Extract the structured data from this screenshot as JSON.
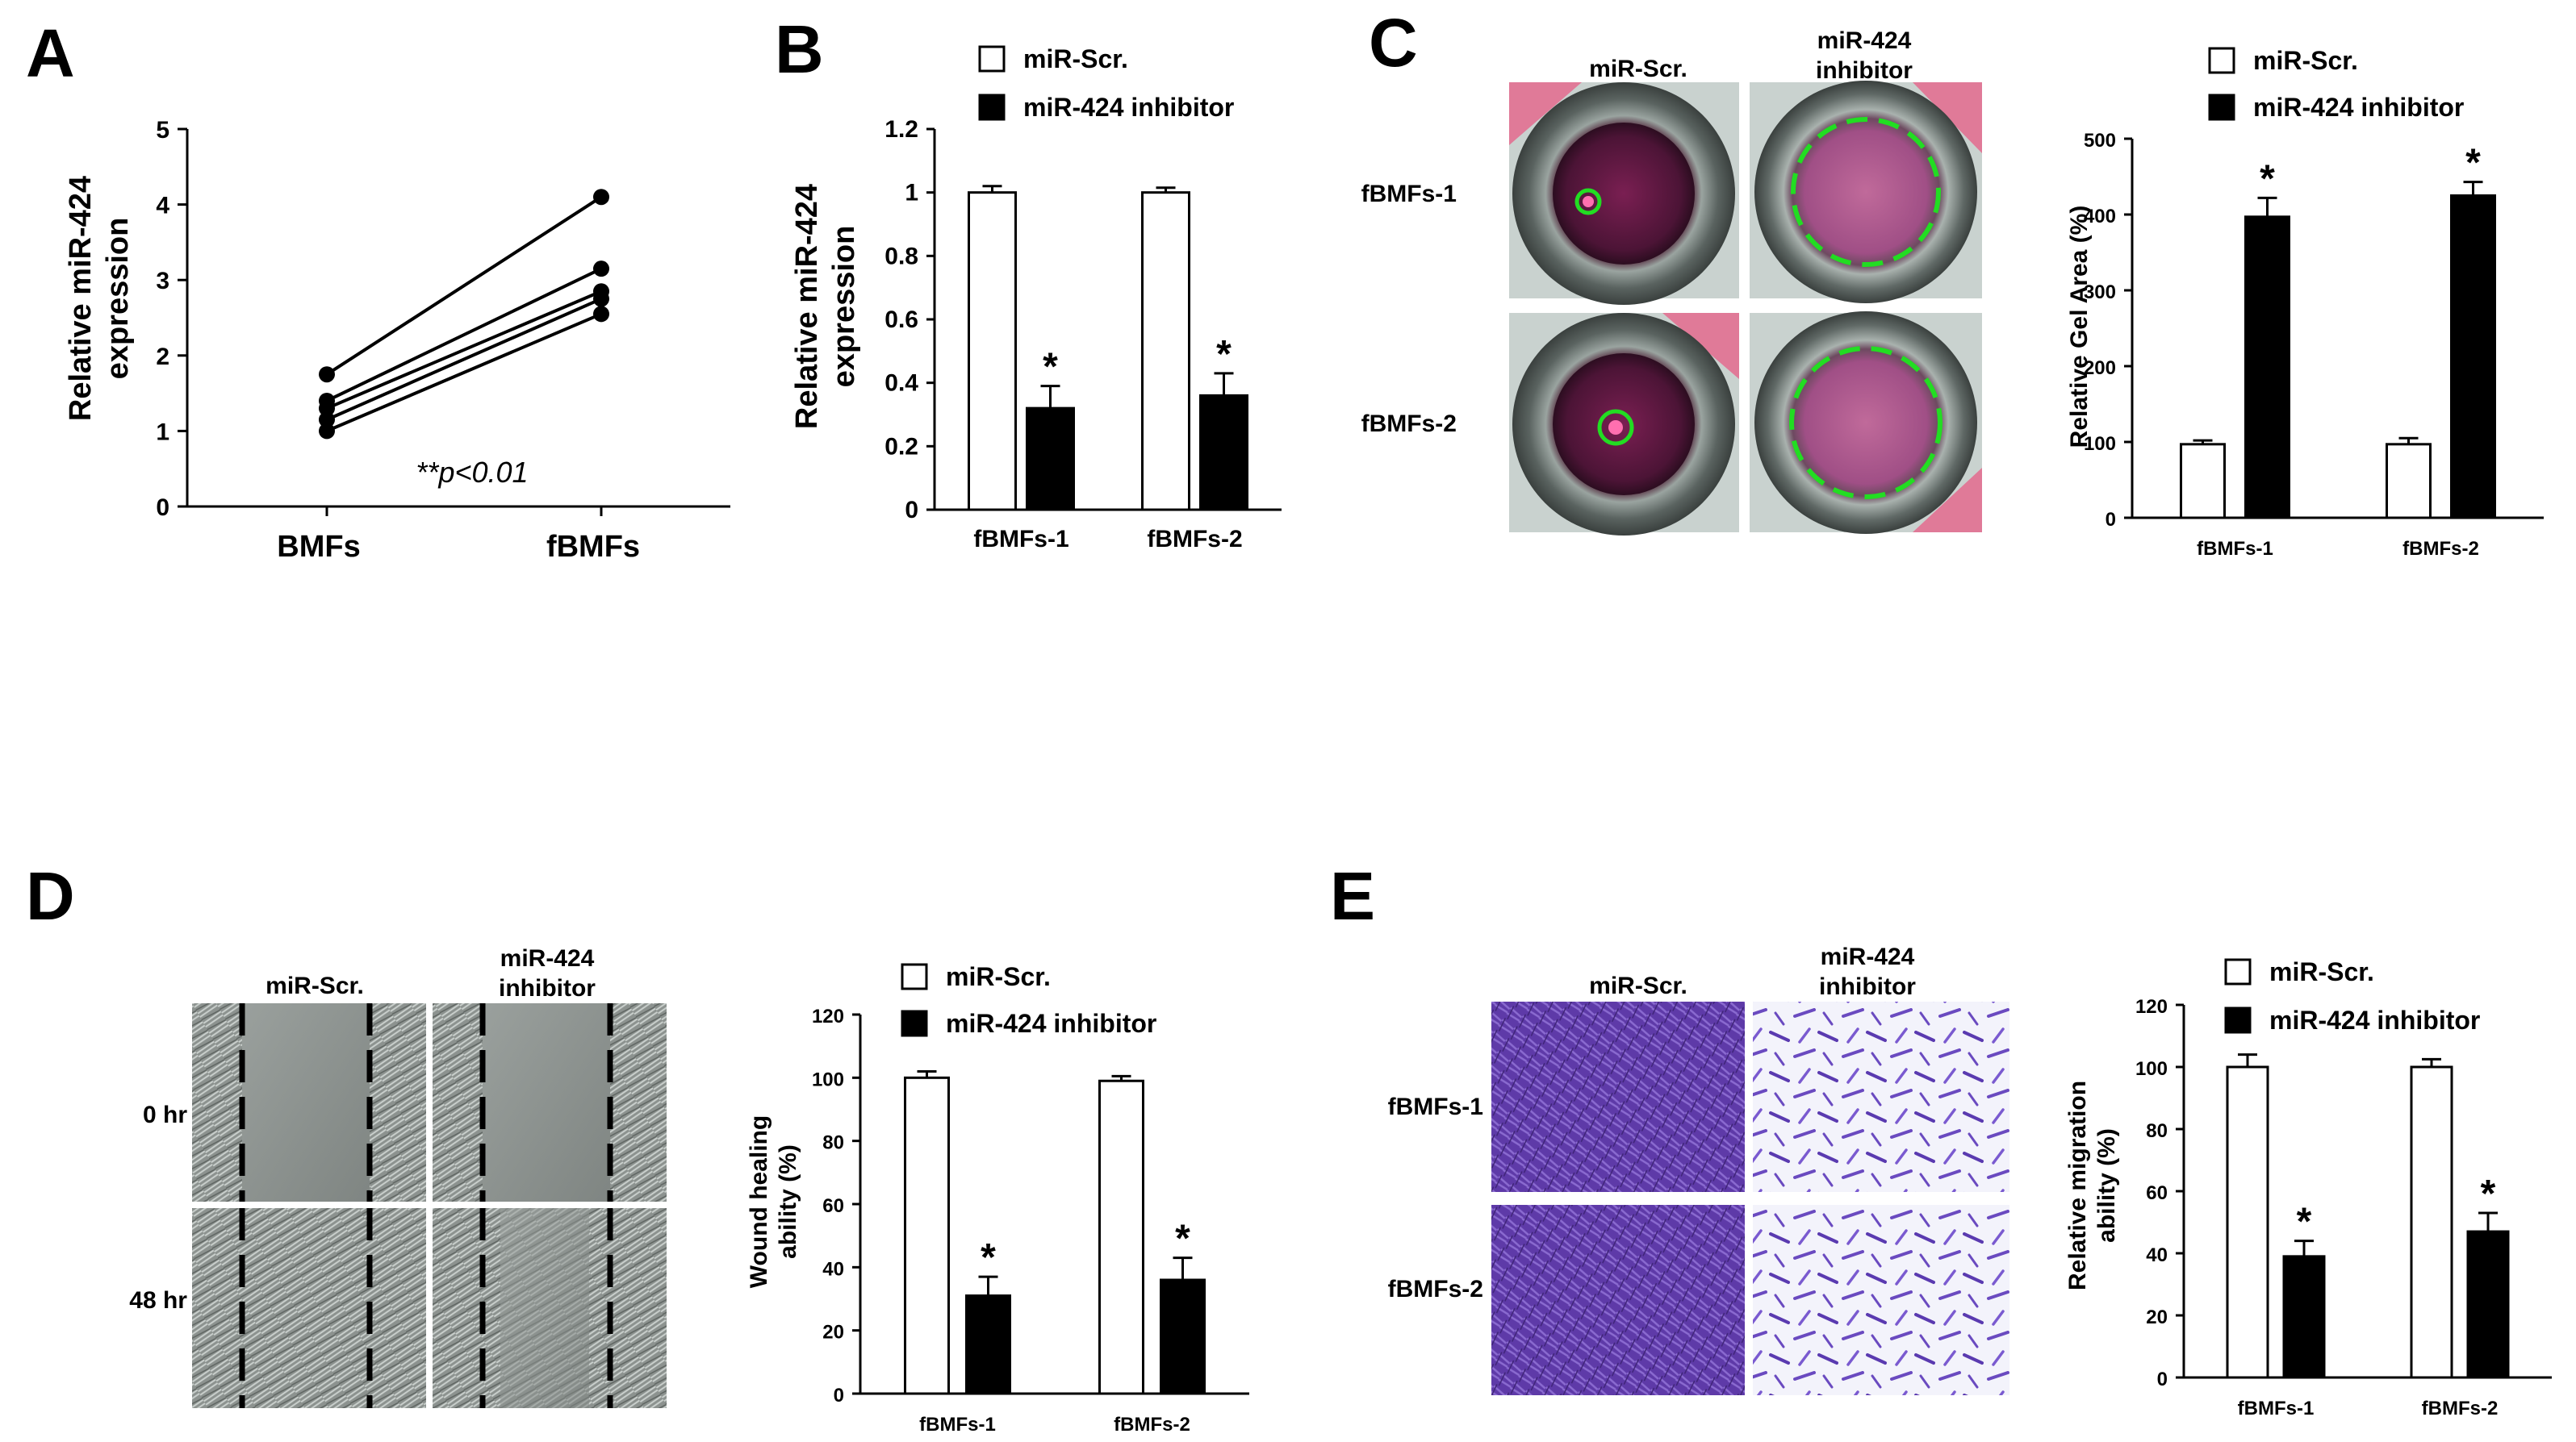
{
  "panels": {
    "A": {
      "label": "A"
    },
    "B": {
      "label": "B"
    },
    "C": {
      "label": "C"
    },
    "D": {
      "label": "D"
    },
    "E": {
      "label": "E"
    }
  },
  "legend": {
    "scr": "miR-Scr.",
    "inhibitor": "miR-424 inhibitor"
  },
  "images": {
    "C": {
      "col1": "miR-Scr.",
      "col2_line1": "miR-424",
      "col2_line2": "inhibitor",
      "row1": "fBMFs-1",
      "row2": "fBMFs-2"
    },
    "D": {
      "col1": "miR-Scr.",
      "col2_line1": "miR-424",
      "col2_line2": "inhibitor",
      "row1": "0 hr",
      "row2": "48 hr"
    },
    "E": {
      "col1": "miR-Scr.",
      "col2_line1": "miR-424",
      "col2_line2": "inhibitor",
      "row1": "fBMFs-1",
      "row2": "fBMFs-2"
    }
  },
  "colors": {
    "inhibitor": "#000000",
    "scr": "#ffffff",
    "gel_ring": "#22dd22",
    "well_pink": "#b02a6a",
    "crystal_violet": "#6a3fb8"
  },
  "chart_data": [
    {
      "id": "A",
      "type": "line",
      "ylabel_line1": "Relative miR-424",
      "ylabel_line2": "expression",
      "categories": [
        "BMFs",
        "fBMFs"
      ],
      "ylim": [
        0,
        5
      ],
      "yticks": [
        0,
        1,
        2,
        3,
        4,
        5
      ],
      "pairs": [
        [
          1.75,
          4.1
        ],
        [
          1.4,
          3.15
        ],
        [
          1.3,
          2.85
        ],
        [
          1.15,
          2.75
        ],
        [
          1.0,
          2.55
        ]
      ],
      "annotation": "**p<0.01"
    },
    {
      "id": "B",
      "type": "bar",
      "ylabel_line1": "Relative miR-424",
      "ylabel_line2": "expression",
      "categories": [
        "fBMFs-1",
        "fBMFs-2"
      ],
      "ylim": [
        0,
        1.2
      ],
      "yticks": [
        "0",
        "0.2",
        "0.4",
        "0.6",
        "0.8",
        "1",
        "1.2"
      ],
      "series": [
        {
          "name": "miR-Scr.",
          "values": [
            1.0,
            1.0
          ],
          "errors": [
            0.02,
            0.015
          ]
        },
        {
          "name": "miR-424 inhibitor",
          "values": [
            0.32,
            0.36
          ],
          "errors": [
            0.07,
            0.07
          ]
        }
      ],
      "stars": [
        "*",
        "*"
      ]
    },
    {
      "id": "C",
      "type": "bar",
      "ylabel": "Relative Gel Area (%)",
      "categories": [
        "fBMFs-1",
        "fBMFs-2"
      ],
      "ylim": [
        0,
        500
      ],
      "yticks": [
        "0",
        "100",
        "200",
        "300",
        "400",
        "500"
      ],
      "series": [
        {
          "name": "miR-Scr.",
          "values": [
            97,
            97
          ],
          "errors": [
            5,
            8
          ]
        },
        {
          "name": "miR-424 inhibitor",
          "values": [
            397,
            425
          ],
          "errors": [
            25,
            18
          ]
        }
      ],
      "stars": [
        "*",
        "*"
      ]
    },
    {
      "id": "D",
      "type": "bar",
      "ylabel_line1": "Wound healing",
      "ylabel_line2": "ability (%)",
      "categories": [
        "fBMFs-1",
        "fBMFs-2"
      ],
      "ylim": [
        0,
        120
      ],
      "yticks": [
        "0",
        "20",
        "40",
        "60",
        "80",
        "100",
        "120"
      ],
      "series": [
        {
          "name": "miR-Scr.",
          "values": [
            100,
            99
          ],
          "errors": [
            2,
            1.5
          ]
        },
        {
          "name": "miR-424 inhibitor",
          "values": [
            31,
            36
          ],
          "errors": [
            6,
            7
          ]
        }
      ],
      "stars": [
        "*",
        "*"
      ]
    },
    {
      "id": "E",
      "type": "bar",
      "ylabel_line1": "Relative migration",
      "ylabel_line2": "ability (%)",
      "categories": [
        "fBMFs-1",
        "fBMFs-2"
      ],
      "ylim": [
        0,
        120
      ],
      "yticks": [
        "0",
        "20",
        "40",
        "60",
        "80",
        "100",
        "120"
      ],
      "series": [
        {
          "name": "miR-Scr.",
          "values": [
            100,
            100
          ],
          "errors": [
            4,
            2.5
          ]
        },
        {
          "name": "miR-424 inhibitor",
          "values": [
            39,
            47
          ],
          "errors": [
            5,
            6
          ]
        }
      ],
      "stars": [
        "*",
        "*"
      ]
    }
  ]
}
